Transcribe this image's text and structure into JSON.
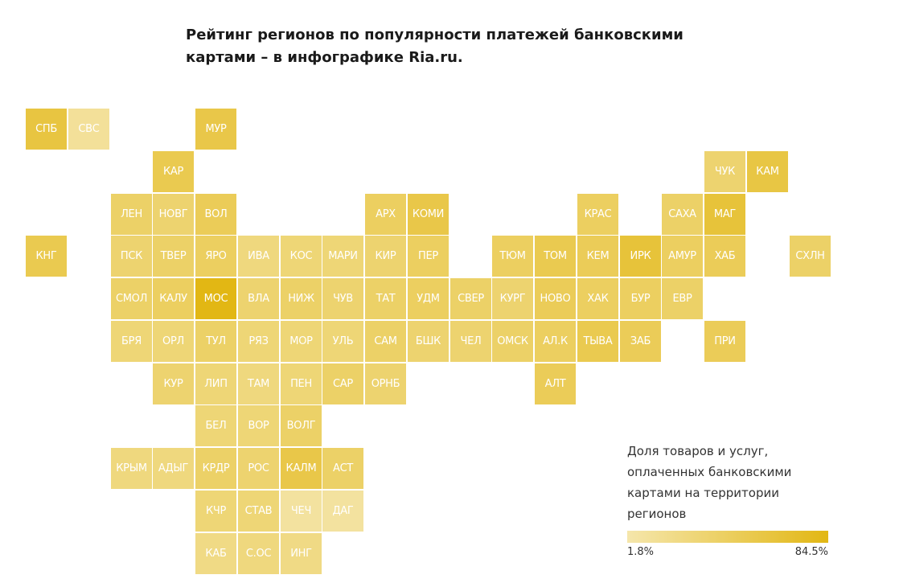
{
  "title": "Рейтинг регионов по популярности платежей банковскими картами – в инфографике Ria.ru.",
  "legend": {
    "title": "Доля товаров и услуг, оплаченных банковскими картами на территории регионов",
    "min_label": "1.8%",
    "max_label": "84.5%",
    "color_low": "#f5e6ab",
    "color_high": "#e2b714"
  },
  "regions": [
    {
      "label": "СПБ",
      "row": 0,
      "col": 0,
      "shade": 0.7
    },
    {
      "label": "СВС",
      "row": 0,
      "col": 1,
      "shade": 0.12
    },
    {
      "label": "МУР",
      "row": 0,
      "col": 4,
      "shade": 0.65
    },
    {
      "label": "КАР",
      "row": 1,
      "col": 3,
      "shade": 0.6
    },
    {
      "label": "ЧУК",
      "row": 1,
      "col": 16,
      "shade": 0.4
    },
    {
      "label": "КАМ",
      "row": 1,
      "col": 17,
      "shade": 0.68
    },
    {
      "label": "ЛЕН",
      "row": 2,
      "col": 2,
      "shade": 0.45
    },
    {
      "label": "НОВГ",
      "row": 2,
      "col": 3,
      "shade": 0.4
    },
    {
      "label": "ВОЛ",
      "row": 2,
      "col": 4,
      "shade": 0.55
    },
    {
      "label": "АРХ",
      "row": 2,
      "col": 8,
      "shade": 0.5
    },
    {
      "label": "КОМИ",
      "row": 2,
      "col": 9,
      "shade": 0.65
    },
    {
      "label": "КРАС",
      "row": 2,
      "col": 13,
      "shade": 0.5
    },
    {
      "label": "САХА",
      "row": 2,
      "col": 15,
      "shade": 0.45
    },
    {
      "label": "МАГ",
      "row": 2,
      "col": 16,
      "shade": 0.75
    },
    {
      "label": "КНГ",
      "row": 3,
      "col": 0,
      "shade": 0.6
    },
    {
      "label": "ПСК",
      "row": 3,
      "col": 2,
      "shade": 0.4
    },
    {
      "label": "ТВЕР",
      "row": 3,
      "col": 3,
      "shade": 0.45
    },
    {
      "label": "ЯРО",
      "row": 3,
      "col": 4,
      "shade": 0.5
    },
    {
      "label": "ИВА",
      "row": 3,
      "col": 5,
      "shade": 0.3
    },
    {
      "label": "КОС",
      "row": 3,
      "col": 6,
      "shade": 0.35
    },
    {
      "label": "МАРИ",
      "row": 3,
      "col": 7,
      "shade": 0.35
    },
    {
      "label": "КИР",
      "row": 3,
      "col": 8,
      "shade": 0.4
    },
    {
      "label": "ПЕР",
      "row": 3,
      "col": 9,
      "shade": 0.5
    },
    {
      "label": "ТЮМ",
      "row": 3,
      "col": 11,
      "shade": 0.5
    },
    {
      "label": "ТОМ",
      "row": 3,
      "col": 12,
      "shade": 0.6
    },
    {
      "label": "КЕМ",
      "row": 3,
      "col": 13,
      "shade": 0.55
    },
    {
      "label": "ИРК",
      "row": 3,
      "col": 14,
      "shade": 0.75
    },
    {
      "label": "АМУР",
      "row": 3,
      "col": 15,
      "shade": 0.5
    },
    {
      "label": "ХАБ",
      "row": 3,
      "col": 16,
      "shade": 0.55
    },
    {
      "label": "СХЛН",
      "row": 3,
      "col": 18,
      "shade": 0.45
    },
    {
      "label": "СМОЛ",
      "row": 4,
      "col": 2,
      "shade": 0.45
    },
    {
      "label": "КАЛУ",
      "row": 4,
      "col": 3,
      "shade": 0.5
    },
    {
      "label": "МОС",
      "row": 4,
      "col": 4,
      "shade": 1.0
    },
    {
      "label": "ВЛА",
      "row": 4,
      "col": 5,
      "shade": 0.4
    },
    {
      "label": "НИЖ",
      "row": 4,
      "col": 6,
      "shade": 0.45
    },
    {
      "label": "ЧУВ",
      "row": 4,
      "col": 7,
      "shade": 0.4
    },
    {
      "label": "ТАТ",
      "row": 4,
      "col": 8,
      "shade": 0.45
    },
    {
      "label": "УДМ",
      "row": 4,
      "col": 9,
      "shade": 0.5
    },
    {
      "label": "СВЕР",
      "row": 4,
      "col": 10,
      "shade": 0.45
    },
    {
      "label": "КУРГ",
      "row": 4,
      "col": 11,
      "shade": 0.4
    },
    {
      "label": "НОВО",
      "row": 4,
      "col": 12,
      "shade": 0.55
    },
    {
      "label": "ХАК",
      "row": 4,
      "col": 13,
      "shade": 0.5
    },
    {
      "label": "БУР",
      "row": 4,
      "col": 14,
      "shade": 0.5
    },
    {
      "label": "ЕВР",
      "row": 4,
      "col": 15,
      "shade": 0.45
    },
    {
      "label": "БРЯ",
      "row": 5,
      "col": 2,
      "shade": 0.35
    },
    {
      "label": "ОРЛ",
      "row": 5,
      "col": 3,
      "shade": 0.35
    },
    {
      "label": "ТУЛ",
      "row": 5,
      "col": 4,
      "shade": 0.45
    },
    {
      "label": "РЯЗ",
      "row": 5,
      "col": 5,
      "shade": 0.35
    },
    {
      "label": "МОР",
      "row": 5,
      "col": 6,
      "shade": 0.35
    },
    {
      "label": "УЛЬ",
      "row": 5,
      "col": 7,
      "shade": 0.35
    },
    {
      "label": "САМ",
      "row": 5,
      "col": 8,
      "shade": 0.45
    },
    {
      "label": "БШК",
      "row": 5,
      "col": 9,
      "shade": 0.4
    },
    {
      "label": "ЧЕЛ",
      "row": 5,
      "col": 10,
      "shade": 0.4
    },
    {
      "label": "ОМСК",
      "row": 5,
      "col": 11,
      "shade": 0.45
    },
    {
      "label": "АЛ.К",
      "row": 5,
      "col": 12,
      "shade": 0.5
    },
    {
      "label": "ТЫВА",
      "row": 5,
      "col": 13,
      "shade": 0.6
    },
    {
      "label": "ЗАБ",
      "row": 5,
      "col": 14,
      "shade": 0.55
    },
    {
      "label": "ПРИ",
      "row": 5,
      "col": 16,
      "shade": 0.55
    },
    {
      "label": "КУР",
      "row": 6,
      "col": 3,
      "shade": 0.4
    },
    {
      "label": "ЛИП",
      "row": 6,
      "col": 4,
      "shade": 0.35
    },
    {
      "label": "ТАМ",
      "row": 6,
      "col": 5,
      "shade": 0.3
    },
    {
      "label": "ПЕН",
      "row": 6,
      "col": 6,
      "shade": 0.35
    },
    {
      "label": "САР",
      "row": 6,
      "col": 7,
      "shade": 0.45
    },
    {
      "label": "ОРНБ",
      "row": 6,
      "col": 8,
      "shade": 0.4
    },
    {
      "label": "АЛТ",
      "row": 6,
      "col": 12,
      "shade": 0.55
    },
    {
      "label": "БЕЛ",
      "row": 7,
      "col": 4,
      "shade": 0.35
    },
    {
      "label": "ВОР",
      "row": 7,
      "col": 5,
      "shade": 0.35
    },
    {
      "label": "ВОЛГ",
      "row": 7,
      "col": 6,
      "shade": 0.45
    },
    {
      "label": "КРЫМ",
      "row": 8,
      "col": 2,
      "shade": 0.3
    },
    {
      "label": "АДЫГ",
      "row": 8,
      "col": 3,
      "shade": 0.3
    },
    {
      "label": "КРДР",
      "row": 8,
      "col": 4,
      "shade": 0.45
    },
    {
      "label": "РОС",
      "row": 8,
      "col": 5,
      "shade": 0.4
    },
    {
      "label": "КАЛМ",
      "row": 8,
      "col": 6,
      "shade": 0.65
    },
    {
      "label": "АСТ",
      "row": 8,
      "col": 7,
      "shade": 0.45
    },
    {
      "label": "КЧР",
      "row": 9,
      "col": 4,
      "shade": 0.35
    },
    {
      "label": "СТАВ",
      "row": 9,
      "col": 5,
      "shade": 0.35
    },
    {
      "label": "ЧЕЧ",
      "row": 9,
      "col": 6,
      "shade": 0.08
    },
    {
      "label": "ДАГ",
      "row": 9,
      "col": 7,
      "shade": 0.08
    },
    {
      "label": "КАБ",
      "row": 10,
      "col": 4,
      "shade": 0.25
    },
    {
      "label": "С.ОС",
      "row": 10,
      "col": 5,
      "shade": 0.3
    },
    {
      "label": "ИНГ",
      "row": 10,
      "col": 6,
      "shade": 0.25
    }
  ]
}
